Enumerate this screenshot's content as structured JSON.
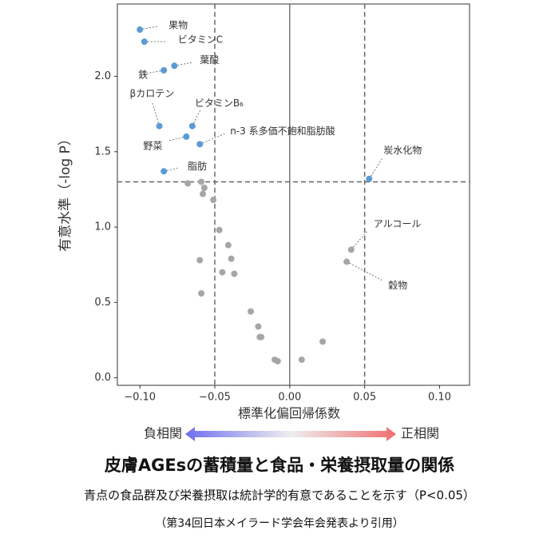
{
  "chart_data": {
    "type": "scatter",
    "title": "皮膚AGEsの蓄積量と食品・栄養摂取量の関係",
    "subtitle": "青点の食品群及び栄養摂取は統計学的有意であることを示す（P<0.05）",
    "source": "（第34回日本メイラード学会年会発表より引用）",
    "xlabel": "標準化偏回帰係数",
    "ylabel": "有意水準（-log P）",
    "negative_label": "負相関",
    "positive_label": "正相関",
    "xlim": [
      -0.115,
      0.12
    ],
    "ylim": [
      -0.05,
      2.48
    ],
    "xticks": [
      {
        "value": -0.1,
        "label": "−0.10"
      },
      {
        "value": -0.05,
        "label": "−0.05"
      },
      {
        "value": 0,
        "label": "0.00"
      },
      {
        "value": 0.05,
        "label": "0.05"
      },
      {
        "value": 0.1,
        "label": "0.10"
      }
    ],
    "yticks": [
      {
        "value": 0,
        "label": "0.0"
      },
      {
        "value": 0.5,
        "label": "0.5"
      },
      {
        "value": 1,
        "label": "1.0"
      },
      {
        "value": 1.5,
        "label": "1.5"
      },
      {
        "value": 2,
        "label": "2.0"
      }
    ],
    "reference_lines": {
      "x": [
        -0.05,
        0.05
      ],
      "y": [
        1.3
      ]
    },
    "series": [
      {
        "color": "#5b9bd5",
        "x": [
          -0.1,
          -0.097,
          -0.077,
          -0.084,
          -0.065,
          -0.087,
          -0.069,
          -0.06,
          -0.084,
          0.053
        ],
        "y": [
          2.31,
          2.23,
          2.07,
          2.04,
          1.67,
          1.67,
          1.6,
          1.55,
          1.37,
          1.32
        ],
        "labels": [
          "果物",
          "ビタミンC",
          "葉酸",
          "鉄",
          "ビタミンB₆",
          "βカロテン",
          "野菜",
          "n-3 系多価不飽和脂肪酸",
          "脂肪",
          "炭水化物"
        ]
      },
      {
        "color": "#a6a6a6",
        "x": [
          -0.068,
          -0.059,
          -0.057,
          -0.058,
          -0.051,
          -0.047,
          -0.041,
          -0.039,
          -0.06,
          -0.045,
          -0.037,
          -0.059,
          -0.026,
          -0.021,
          -0.02,
          -0.019,
          -0.01,
          -0.008,
          0.008,
          0.022,
          0.041,
          0.038
        ],
        "y": [
          1.29,
          1.3,
          1.26,
          1.22,
          1.18,
          0.98,
          0.88,
          0.79,
          0.78,
          0.7,
          0.69,
          0.56,
          0.44,
          0.34,
          0.27,
          0.27,
          0.12,
          0.11,
          0.12,
          0.24,
          0.85,
          0.77
        ],
        "labels": [
          null,
          null,
          null,
          null,
          null,
          null,
          null,
          null,
          null,
          null,
          null,
          null,
          null,
          null,
          null,
          null,
          null,
          null,
          null,
          null,
          "アルコール",
          "穀物"
        ]
      }
    ]
  }
}
